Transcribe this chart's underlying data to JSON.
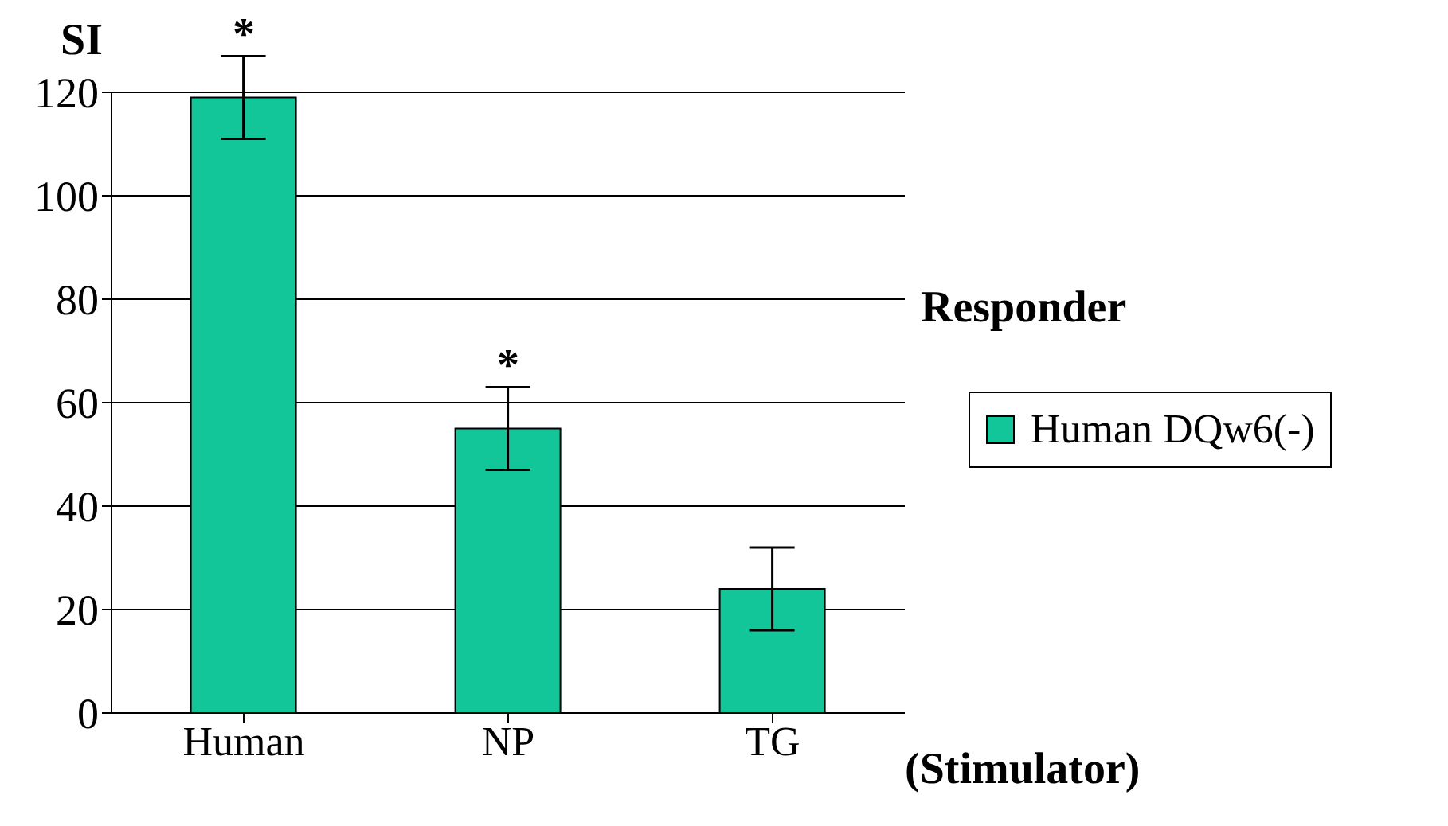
{
  "chart_data": {
    "type": "bar",
    "ylabel": "SI",
    "xlabel": "(Stimulator)",
    "legend_title": "Responder",
    "categories": [
      "Human",
      "NP",
      "TG"
    ],
    "series": [
      {
        "name": "Human DQw6(-)",
        "color": "#12c69a",
        "values": [
          119,
          55,
          24
        ],
        "errors": [
          8,
          8,
          8
        ]
      }
    ],
    "ylim": [
      0,
      120
    ],
    "yticks": [
      0,
      20,
      40,
      60,
      80,
      100,
      120
    ],
    "grid": "y",
    "legend": "right",
    "annotations": [
      {
        "text": "*",
        "x": "Human",
        "y": 127
      },
      {
        "text": "*",
        "x": "NP",
        "y": 63
      }
    ]
  }
}
